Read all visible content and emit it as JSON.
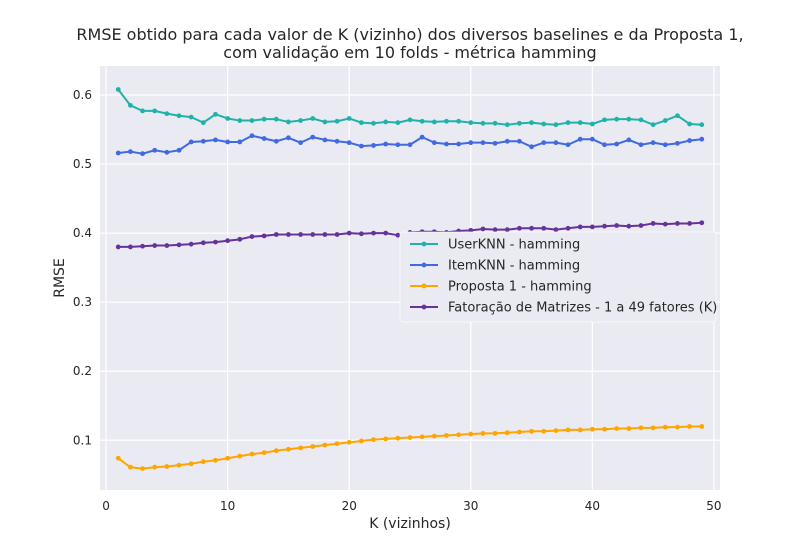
{
  "chart_data": {
    "type": "line",
    "title": [
      "RMSE obtido para cada valor de K (vizinho) dos diversos baselines e da Proposta 1,",
      "com validação em 10 folds - métrica hamming"
    ],
    "xlabel": "K (vizinhos)",
    "ylabel": "RMSE",
    "xlim": [
      -0.5,
      50.5
    ],
    "ylim": [
      0.028,
      0.642
    ],
    "xticks": [
      0,
      10,
      20,
      30,
      40,
      50
    ],
    "yticks": [
      0.1,
      0.2,
      0.3,
      0.4,
      0.5,
      0.6
    ],
    "legend_position": "center-right",
    "grid": true,
    "background": "#eaeaf2",
    "x": [
      1,
      2,
      3,
      4,
      5,
      6,
      7,
      8,
      9,
      10,
      11,
      12,
      13,
      14,
      15,
      16,
      17,
      18,
      19,
      20,
      21,
      22,
      23,
      24,
      25,
      26,
      27,
      28,
      29,
      30,
      31,
      32,
      33,
      34,
      35,
      36,
      37,
      38,
      39,
      40,
      41,
      42,
      43,
      44,
      45,
      46,
      47,
      48,
      49
    ],
    "series": [
      {
        "name": "UserKNN - hamming",
        "color": "#20b2aa",
        "values": [
          0.608,
          0.585,
          0.577,
          0.577,
          0.573,
          0.57,
          0.568,
          0.56,
          0.572,
          0.566,
          0.563,
          0.563,
          0.565,
          0.565,
          0.561,
          0.563,
          0.566,
          0.561,
          0.562,
          0.566,
          0.56,
          0.559,
          0.561,
          0.56,
          0.564,
          0.562,
          0.561,
          0.562,
          0.562,
          0.56,
          0.559,
          0.559,
          0.557,
          0.559,
          0.56,
          0.558,
          0.557,
          0.56,
          0.56,
          0.558,
          0.564,
          0.565,
          0.565,
          0.564,
          0.557,
          0.563,
          0.57,
          0.558,
          0.557
        ]
      },
      {
        "name": "ItemKNN - hamming",
        "color": "#4169e1",
        "values": [
          0.516,
          0.518,
          0.515,
          0.52,
          0.517,
          0.52,
          0.532,
          0.533,
          0.535,
          0.532,
          0.532,
          0.541,
          0.537,
          0.533,
          0.538,
          0.531,
          0.539,
          0.535,
          0.533,
          0.531,
          0.526,
          0.527,
          0.529,
          0.528,
          0.528,
          0.539,
          0.531,
          0.529,
          0.529,
          0.531,
          0.531,
          0.53,
          0.533,
          0.533,
          0.525,
          0.531,
          0.531,
          0.528,
          0.536,
          0.536,
          0.528,
          0.529,
          0.535,
          0.528,
          0.531,
          0.528,
          0.53,
          0.534,
          0.536
        ]
      },
      {
        "name": "Proposta 1 - hamming",
        "color": "#ffa500",
        "values": [
          0.074,
          0.061,
          0.059,
          0.061,
          0.062,
          0.064,
          0.066,
          0.069,
          0.071,
          0.074,
          0.077,
          0.08,
          0.082,
          0.085,
          0.087,
          0.089,
          0.091,
          0.093,
          0.095,
          0.097,
          0.099,
          0.101,
          0.102,
          0.103,
          0.104,
          0.105,
          0.106,
          0.107,
          0.108,
          0.109,
          0.11,
          0.11,
          0.111,
          0.112,
          0.113,
          0.113,
          0.114,
          0.115,
          0.115,
          0.116,
          0.116,
          0.117,
          0.117,
          0.118,
          0.118,
          0.119,
          0.119,
          0.12,
          0.12
        ]
      },
      {
        "name": "Fatoração de Matrizes - 1 a 49 fatores (K)",
        "color": "#663399",
        "values": [
          0.38,
          0.38,
          0.381,
          0.382,
          0.382,
          0.383,
          0.384,
          0.386,
          0.387,
          0.389,
          0.391,
          0.395,
          0.396,
          0.398,
          0.398,
          0.398,
          0.398,
          0.398,
          0.398,
          0.4,
          0.399,
          0.4,
          0.4,
          0.397,
          0.401,
          0.402,
          0.402,
          0.401,
          0.403,
          0.404,
          0.406,
          0.405,
          0.405,
          0.407,
          0.407,
          0.407,
          0.405,
          0.407,
          0.409,
          0.409,
          0.41,
          0.411,
          0.41,
          0.411,
          0.414,
          0.413,
          0.414,
          0.414,
          0.415
        ]
      }
    ]
  }
}
